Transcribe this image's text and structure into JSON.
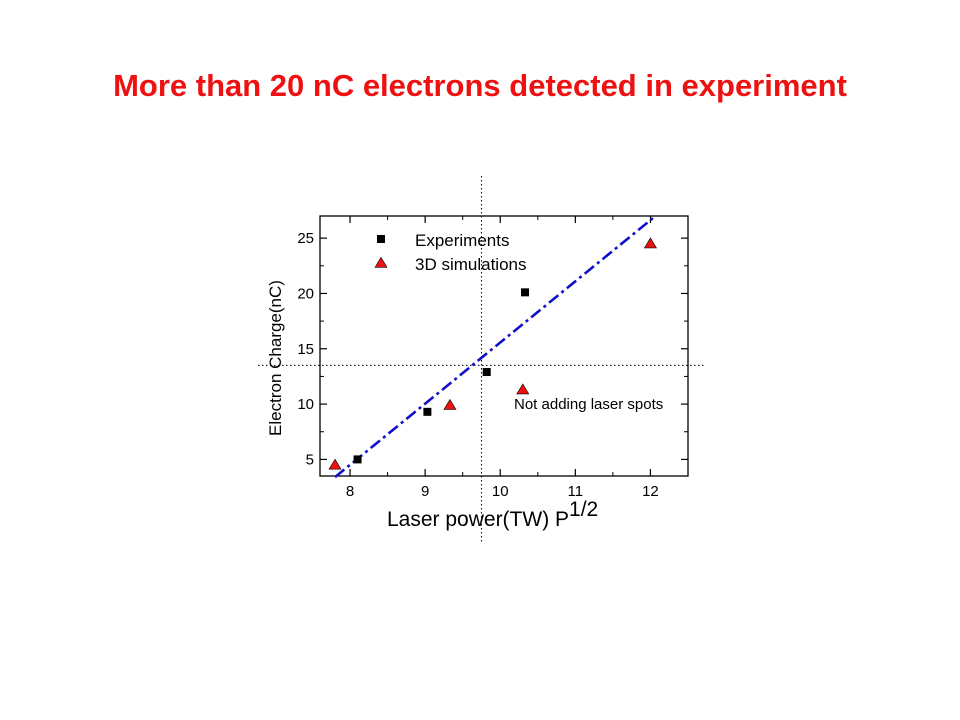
{
  "slide": {
    "title": "More than 20 nC electrons detected in experiment"
  },
  "chart_data": {
    "type": "scatter",
    "xlabel": "Laser power(TW) P",
    "xlabel_superscript": "1/2",
    "ylabel": "Electron Charge(nC)",
    "xlim": [
      7.6,
      12.5
    ],
    "ylim": [
      3.5,
      27.0
    ],
    "xticks": [
      8,
      9,
      10,
      11,
      12
    ],
    "yticks": [
      5,
      10,
      15,
      20,
      25
    ],
    "legend_position": "top-left",
    "series": [
      {
        "name": "Experiments",
        "marker": "square",
        "color": "#000000",
        "points": [
          {
            "x": 8.1,
            "y": 5.0
          },
          {
            "x": 9.03,
            "y": 9.3
          },
          {
            "x": 9.82,
            "y": 12.9
          },
          {
            "x": 10.33,
            "y": 20.1
          }
        ]
      },
      {
        "name": "3D simulations",
        "marker": "triangle",
        "color": "#ee1111",
        "points": [
          {
            "x": 7.8,
            "y": 4.5
          },
          {
            "x": 9.33,
            "y": 9.9
          },
          {
            "x": 10.3,
            "y": 11.3
          },
          {
            "x": 12.0,
            "y": 24.5
          }
        ]
      }
    ],
    "fit_line": {
      "style": "dash-dot",
      "color": "#1010cc",
      "x": [
        7.8,
        12.05
      ],
      "y": [
        3.4,
        26.9
      ]
    },
    "crosshair": {
      "x": 9.75,
      "y": 13.5
    },
    "annotations": [
      {
        "text": "Not adding laser spots",
        "x": 10.12,
        "y": 9.5
      }
    ]
  }
}
